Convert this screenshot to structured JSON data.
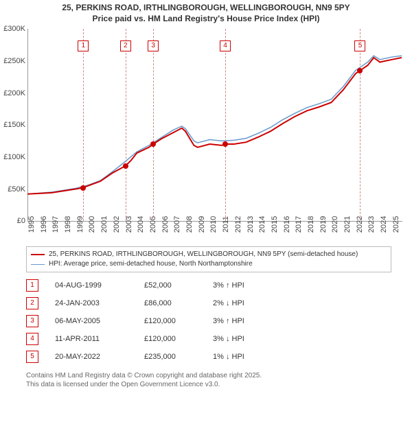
{
  "title_line1": "25, PERKINS ROAD, IRTHLINGBOROUGH, WELLINGBOROUGH, NN9 5PY",
  "title_line2": "Price paid vs. HM Land Registry's House Price Index (HPI)",
  "chart": {
    "type": "line",
    "background_color": "#ffffff",
    "grid_color": "#e0e0e0",
    "x_min": 1995,
    "x_max": 2025.8,
    "y_min": 0,
    "y_max": 300000,
    "y_ticks": [
      0,
      50000,
      100000,
      150000,
      200000,
      250000,
      300000
    ],
    "y_tick_labels": [
      "£0",
      "£50K",
      "£100K",
      "£150K",
      "£200K",
      "£250K",
      "£300K"
    ],
    "x_ticks": [
      1995,
      1996,
      1997,
      1998,
      1999,
      2000,
      2001,
      2002,
      2003,
      2004,
      2005,
      2006,
      2007,
      2008,
      2009,
      2010,
      2011,
      2012,
      2013,
      2014,
      2015,
      2016,
      2017,
      2018,
      2019,
      2020,
      2021,
      2022,
      2023,
      2024,
      2025
    ],
    "series": [
      {
        "name": "price_paid",
        "color": "#cc0000",
        "width": 2,
        "data": [
          [
            1995,
            42000
          ],
          [
            1996,
            43000
          ],
          [
            1997,
            44000
          ],
          [
            1998,
            47000
          ],
          [
            1999,
            50000
          ],
          [
            1999.6,
            52000
          ],
          [
            2000,
            55000
          ],
          [
            2001,
            62000
          ],
          [
            2002,
            75000
          ],
          [
            2003.07,
            86000
          ],
          [
            2003.5,
            94000
          ],
          [
            2004,
            106000
          ],
          [
            2005,
            115000
          ],
          [
            2005.35,
            120000
          ],
          [
            2006,
            128000
          ],
          [
            2007,
            138000
          ],
          [
            2007.7,
            145000
          ],
          [
            2008,
            140000
          ],
          [
            2008.7,
            118000
          ],
          [
            2009,
            115000
          ],
          [
            2010,
            120000
          ],
          [
            2011,
            118000
          ],
          [
            2011.28,
            120000
          ],
          [
            2012,
            120000
          ],
          [
            2013,
            123000
          ],
          [
            2014,
            131000
          ],
          [
            2015,
            140000
          ],
          [
            2016,
            152000
          ],
          [
            2017,
            163000
          ],
          [
            2018,
            172000
          ],
          [
            2019,
            178000
          ],
          [
            2020,
            185000
          ],
          [
            2021,
            205000
          ],
          [
            2022,
            230000
          ],
          [
            2022.38,
            235000
          ],
          [
            2023,
            243000
          ],
          [
            2023.5,
            255000
          ],
          [
            2024,
            248000
          ],
          [
            2025,
            252000
          ],
          [
            2025.8,
            255000
          ]
        ]
      },
      {
        "name": "hpi",
        "color": "#6699cc",
        "width": 1.5,
        "data": [
          [
            1995,
            42000
          ],
          [
            1996,
            43500
          ],
          [
            1997,
            45000
          ],
          [
            1998,
            48000
          ],
          [
            1999,
            51000
          ],
          [
            2000,
            56000
          ],
          [
            2001,
            63000
          ],
          [
            2002,
            77000
          ],
          [
            2003,
            92000
          ],
          [
            2004,
            108000
          ],
          [
            2005,
            118000
          ],
          [
            2006,
            130000
          ],
          [
            2007,
            142000
          ],
          [
            2007.7,
            148000
          ],
          [
            2008,
            144000
          ],
          [
            2008.7,
            125000
          ],
          [
            2009,
            122000
          ],
          [
            2010,
            127000
          ],
          [
            2011,
            125000
          ],
          [
            2012,
            126000
          ],
          [
            2013,
            129000
          ],
          [
            2014,
            137000
          ],
          [
            2015,
            146000
          ],
          [
            2016,
            158000
          ],
          [
            2017,
            168000
          ],
          [
            2018,
            177000
          ],
          [
            2019,
            183000
          ],
          [
            2020,
            190000
          ],
          [
            2021,
            210000
          ],
          [
            2022,
            235000
          ],
          [
            2023,
            248000
          ],
          [
            2023.5,
            258000
          ],
          [
            2024,
            252000
          ],
          [
            2025,
            256000
          ],
          [
            2025.8,
            258000
          ]
        ]
      }
    ],
    "sale_points": [
      {
        "n": "1",
        "year": 1999.6,
        "price": 52000
      },
      {
        "n": "2",
        "year": 2003.07,
        "price": 86000
      },
      {
        "n": "3",
        "year": 2005.35,
        "price": 120000
      },
      {
        "n": "4",
        "year": 2011.28,
        "price": 120000
      },
      {
        "n": "5",
        "year": 2022.38,
        "price": 235000
      }
    ],
    "marker_border_color": "#cc0000",
    "marker_gridline_color": "#cc8888",
    "point_color": "#cc0000",
    "marker_top_offset": 22
  },
  "legend": {
    "items": [
      {
        "color": "#cc0000",
        "width": 2,
        "label": "25, PERKINS ROAD, IRTHLINGBOROUGH, WELLINGBOROUGH, NN9 5PY (semi-detached house)"
      },
      {
        "color": "#6699cc",
        "width": 1.5,
        "label": "HPI: Average price, semi-detached house, North Northamptonshire"
      }
    ]
  },
  "table": {
    "marker_border_color": "#cc0000",
    "rows": [
      {
        "n": "1",
        "date": "04-AUG-1999",
        "price": "£52,000",
        "pct": "3% ↑ HPI"
      },
      {
        "n": "2",
        "date": "24-JAN-2003",
        "price": "£86,000",
        "pct": "2% ↓ HPI"
      },
      {
        "n": "3",
        "date": "06-MAY-2005",
        "price": "£120,000",
        "pct": "3% ↑ HPI"
      },
      {
        "n": "4",
        "date": "11-APR-2011",
        "price": "£120,000",
        "pct": "3% ↓ HPI"
      },
      {
        "n": "5",
        "date": "20-MAY-2022",
        "price": "£235,000",
        "pct": "1% ↓ HPI"
      }
    ]
  },
  "footer_line1": "Contains HM Land Registry data © Crown copyright and database right 2025.",
  "footer_line2": "This data is licensed under the Open Government Licence v3.0."
}
